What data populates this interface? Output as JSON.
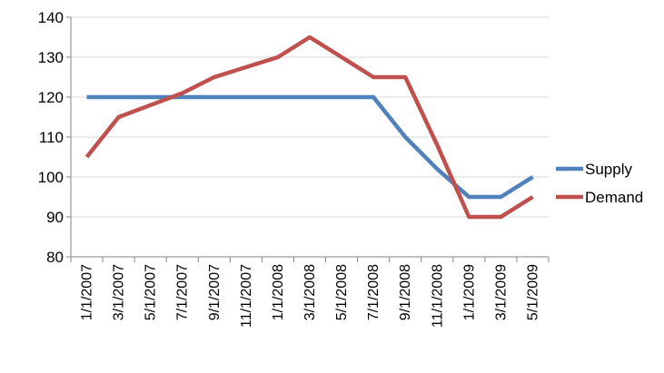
{
  "chart_data": {
    "type": "line",
    "title": "",
    "xlabel": "",
    "ylabel": "",
    "ylim": [
      80,
      140
    ],
    "yticks": [
      "80",
      "90",
      "100",
      "110",
      "120",
      "130",
      "140"
    ],
    "grid": "horizontal",
    "legend_position": "right",
    "categories": [
      "1/1/2007",
      "3/1/2007",
      "5/1/2007",
      "7/1/2007",
      "9/1/2007",
      "11/1/2007",
      "1/1/2008",
      "3/1/2008",
      "5/1/2008",
      "7/1/2008",
      "9/1/2008",
      "11/1/2008",
      "1/1/2009",
      "3/1/2009",
      "5/1/2009"
    ],
    "series": [
      {
        "name": "Supply",
        "color": "#4F81BD",
        "values": [
          120,
          120,
          120,
          120,
          120,
          120,
          120,
          120,
          120,
          120,
          110,
          102,
          95,
          95,
          100
        ]
      },
      {
        "name": "Demand",
        "color": "#C0504D",
        "values": [
          105,
          115,
          118,
          121,
          125,
          127.5,
          130,
          135,
          130,
          125,
          125,
          108,
          90,
          90,
          95
        ]
      }
    ]
  }
}
